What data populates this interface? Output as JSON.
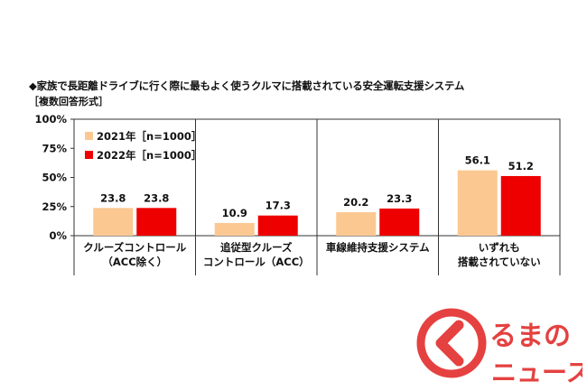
{
  "title": "◆家族で長距離ドライブに行く際に最もよく使うクルマに搭載されている安全運転支援システム",
  "subtitle": "［複数回答形式］",
  "chart_data": {
    "type": "bar",
    "categories": [
      [
        "クルーズコントロール",
        "（ACC除く）"
      ],
      [
        "追従型クルーズ",
        "コントロール（ACC）"
      ],
      [
        "車線維持支援システム"
      ],
      [
        "いずれも",
        "搭載されていない"
      ]
    ],
    "series": [
      {
        "name": "2021年［n=1000］",
        "color": "#fbc891",
        "values": [
          23.8,
          10.9,
          20.2,
          56.1
        ]
      },
      {
        "name": "2022年［n=1000］",
        "color": "#ee0000",
        "values": [
          23.8,
          17.3,
          23.3,
          51.2
        ]
      }
    ],
    "yticks": [
      "0%",
      "25%",
      "50%",
      "75%",
      "100%"
    ],
    "ylim": [
      0,
      100
    ],
    "legend": "top-left",
    "grid": false
  },
  "logo": {
    "text_top": "るまの",
    "text_bottom": "ニュース",
    "color": "#e02020"
  }
}
